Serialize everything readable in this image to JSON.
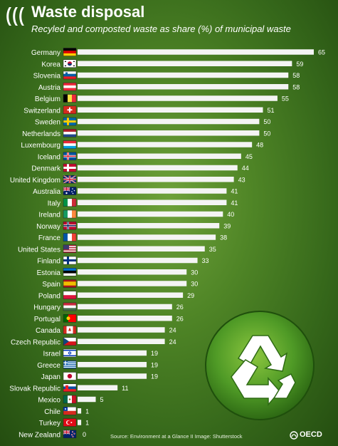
{
  "header": {
    "title": "Waste disposal",
    "subtitle": "Recyled and composted waste as share (%) of municipal waste"
  },
  "footer": {
    "source": "Source: Environment at a Glance II Image: Shutterstock",
    "brand": "OECD"
  },
  "colors": {
    "bar": "#f4f4f4",
    "text": "#ffffff",
    "background": "#4f8526"
  },
  "chart_data": {
    "type": "bar",
    "orientation": "horizontal",
    "title": "Waste disposal",
    "subtitle": "Recyled and composted waste as share (%) of municipal waste",
    "xlabel": "",
    "ylabel": "",
    "xlim": [
      0,
      65
    ],
    "grid": false,
    "categories": [
      "Germany",
      "Korea",
      "Slovenia",
      "Austria",
      "Belgium",
      "Switzerland",
      "Sweden",
      "Netherlands",
      "Luxembourg",
      "Iceland",
      "Denmark",
      "United Kingdom",
      "Australia",
      "Italy",
      "Ireland",
      "Norway",
      "France",
      "United States",
      "Finland",
      "Estonia",
      "Spain",
      "Poland",
      "Hungary",
      "Portugal",
      "Canada",
      "Czech Republic",
      "Israel",
      "Greece",
      "Japan",
      "Slovak Republic",
      "Mexico",
      "Chile",
      "Turkey",
      "New Zealand"
    ],
    "values": [
      65,
      59,
      58,
      58,
      55,
      51,
      50,
      50,
      48,
      45,
      44,
      43,
      41,
      41,
      40,
      39,
      38,
      35,
      33,
      30,
      30,
      29,
      26,
      26,
      24,
      24,
      19,
      19,
      19,
      11,
      5,
      1,
      1,
      0
    ],
    "value_labels": [
      "65",
      "59",
      "58",
      "58",
      "55",
      "51",
      "50",
      "50",
      "48",
      "45",
      "44",
      "43",
      "41",
      "41",
      "40",
      "39",
      "38",
      "35",
      "33",
      "30",
      "30",
      "29",
      "26",
      "26",
      "24",
      "24",
      "19",
      "19",
      "19",
      "11",
      "5",
      "1",
      "1",
      "0"
    ],
    "flags": [
      "germany-flag",
      "korea-flag",
      "slovenia-flag",
      "austria-flag",
      "belgium-flag",
      "switzerland-flag",
      "sweden-flag",
      "netherlands-flag",
      "luxembourg-flag",
      "iceland-flag",
      "denmark-flag",
      "united-kingdom-flag",
      "australia-flag",
      "italy-flag",
      "ireland-flag",
      "norway-flag",
      "france-flag",
      "united-states-flag",
      "finland-flag",
      "estonia-flag",
      "spain-flag",
      "poland-flag",
      "hungary-flag",
      "portugal-flag",
      "canada-flag",
      "czech-republic-flag",
      "israel-flag",
      "greece-flag",
      "japan-flag",
      "slovak-republic-flag",
      "mexico-flag",
      "chile-flag",
      "turkey-flag",
      "new-zealand-flag"
    ]
  }
}
